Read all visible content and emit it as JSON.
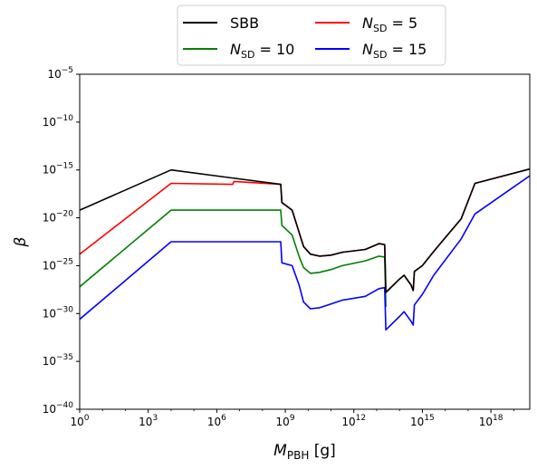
{
  "chart_data": {
    "type": "line",
    "xlabel": "M_PBH [g]",
    "ylabel": "β",
    "xscale": "log",
    "yscale": "log",
    "xlim_exp": [
      0,
      19.7
    ],
    "ylim_exp": [
      -40,
      -5
    ],
    "x_ticks": [
      {
        "exp": 0,
        "base": "10",
        "sup": "0"
      },
      {
        "exp": 3,
        "base": "10",
        "sup": "3"
      },
      {
        "exp": 6,
        "base": "10",
        "sup": "6"
      },
      {
        "exp": 9,
        "base": "10",
        "sup": "9"
      },
      {
        "exp": 12,
        "base": "10",
        "sup": "12"
      },
      {
        "exp": 15,
        "base": "10",
        "sup": "15"
      },
      {
        "exp": 18,
        "base": "10",
        "sup": "18"
      }
    ],
    "y_ticks": [
      {
        "exp": -5,
        "base": "10",
        "sup": "−5"
      },
      {
        "exp": -10,
        "base": "10",
        "sup": "−10"
      },
      {
        "exp": -15,
        "base": "10",
        "sup": "−15"
      },
      {
        "exp": -20,
        "base": "10",
        "sup": "−20"
      },
      {
        "exp": -25,
        "base": "10",
        "sup": "−25"
      },
      {
        "exp": -30,
        "base": "10",
        "sup": "−30"
      },
      {
        "exp": -35,
        "base": "10",
        "sup": "−35"
      },
      {
        "exp": -40,
        "base": "10",
        "sup": "−40"
      }
    ],
    "legend": {
      "placement": "upper center, outside",
      "columns": 2
    },
    "series": [
      {
        "name": "SBB",
        "color": "#000000",
        "points": [
          [
            0,
            -19.2
          ],
          [
            4,
            -15.0
          ],
          [
            8.8,
            -16.5
          ],
          [
            8.85,
            -18.4
          ],
          [
            9.3,
            -19.2
          ],
          [
            9.6,
            -21.5
          ],
          [
            9.8,
            -23.0
          ],
          [
            10.1,
            -23.8
          ],
          [
            10.5,
            -24.0
          ],
          [
            11,
            -23.9
          ],
          [
            11.5,
            -23.6
          ],
          [
            12.5,
            -23.3
          ],
          [
            13.1,
            -22.7
          ],
          [
            13.35,
            -22.8
          ],
          [
            13.4,
            -27.8
          ],
          [
            14.0,
            -26.4
          ],
          [
            14.2,
            -26.0
          ],
          [
            14.5,
            -27.0
          ],
          [
            14.6,
            -27.6
          ],
          [
            14.65,
            -25.6
          ],
          [
            15,
            -25.0
          ],
          [
            15.5,
            -23.5
          ],
          [
            16.7,
            -20.1
          ],
          [
            17.3,
            -16.4
          ],
          [
            19.7,
            -14.9
          ]
        ]
      },
      {
        "name": "N_SD = 5",
        "color": "#ff0000",
        "points": [
          [
            0,
            -23.8
          ],
          [
            4,
            -16.4
          ],
          [
            6.7,
            -16.5
          ],
          [
            6.75,
            -16.2
          ],
          [
            8.8,
            -16.5
          ],
          [
            8.85,
            -18.4
          ],
          [
            9.3,
            -19.2
          ],
          [
            9.6,
            -21.5
          ],
          [
            9.8,
            -23.0
          ],
          [
            10.1,
            -23.8
          ],
          [
            10.5,
            -24.0
          ],
          [
            11,
            -23.9
          ],
          [
            11.5,
            -23.6
          ],
          [
            12.5,
            -23.3
          ],
          [
            13.1,
            -22.7
          ],
          [
            13.35,
            -22.8
          ],
          [
            13.4,
            -27.8
          ],
          [
            14.0,
            -26.4
          ],
          [
            14.2,
            -26.0
          ],
          [
            14.5,
            -27.0
          ],
          [
            14.6,
            -27.6
          ],
          [
            14.65,
            -25.6
          ],
          [
            15,
            -25.0
          ],
          [
            15.5,
            -23.5
          ],
          [
            16.7,
            -20.1
          ],
          [
            17.3,
            -16.4
          ],
          [
            19.7,
            -14.9
          ]
        ]
      },
      {
        "name": "N_SD = 10",
        "color": "#008000",
        "points": [
          [
            0,
            -27.2
          ],
          [
            4,
            -19.2
          ],
          [
            8.8,
            -19.2
          ],
          [
            8.85,
            -20.8
          ],
          [
            9.3,
            -21.8
          ],
          [
            9.6,
            -24.0
          ],
          [
            9.8,
            -25.2
          ],
          [
            10.1,
            -25.8
          ],
          [
            10.5,
            -25.7
          ],
          [
            11,
            -25.4
          ],
          [
            11.5,
            -25.0
          ],
          [
            12.5,
            -24.5
          ],
          [
            13.1,
            -24.0
          ],
          [
            13.35,
            -24.1
          ],
          [
            13.4,
            -29.3
          ]
        ]
      },
      {
        "name": "N_SD = 15",
        "color": "#0000ff",
        "points": [
          [
            0,
            -30.6
          ],
          [
            4,
            -22.5
          ],
          [
            8.8,
            -22.5
          ],
          [
            8.85,
            -24.7
          ],
          [
            9.3,
            -25.0
          ],
          [
            9.6,
            -27.0
          ],
          [
            9.8,
            -28.8
          ],
          [
            10.1,
            -29.5
          ],
          [
            10.5,
            -29.4
          ],
          [
            11,
            -29.0
          ],
          [
            11.5,
            -28.6
          ],
          [
            12.5,
            -28.2
          ],
          [
            13.1,
            -27.4
          ],
          [
            13.35,
            -27.3
          ],
          [
            13.4,
            -31.7
          ],
          [
            14.0,
            -30.3
          ],
          [
            14.2,
            -29.8
          ],
          [
            14.5,
            -30.8
          ],
          [
            14.6,
            -31.2
          ],
          [
            14.65,
            -29.1
          ],
          [
            15,
            -28.0
          ],
          [
            15.5,
            -26.0
          ],
          [
            16.7,
            -22.2
          ],
          [
            17.3,
            -19.6
          ],
          [
            19.7,
            -15.6
          ]
        ]
      }
    ]
  },
  "legend_entries": [
    {
      "plain": "SBB"
    },
    {
      "italic": "N",
      "sub": "SD",
      "rest": " = 5"
    },
    {
      "italic": "N",
      "sub": "SD",
      "rest": " = 10"
    },
    {
      "italic": "N",
      "sub": "SD",
      "rest": " = 15"
    }
  ],
  "axes": {
    "x_label": {
      "italic": "M",
      "sub": "PBH",
      "rest": " [g]"
    },
    "y_label": "β"
  }
}
